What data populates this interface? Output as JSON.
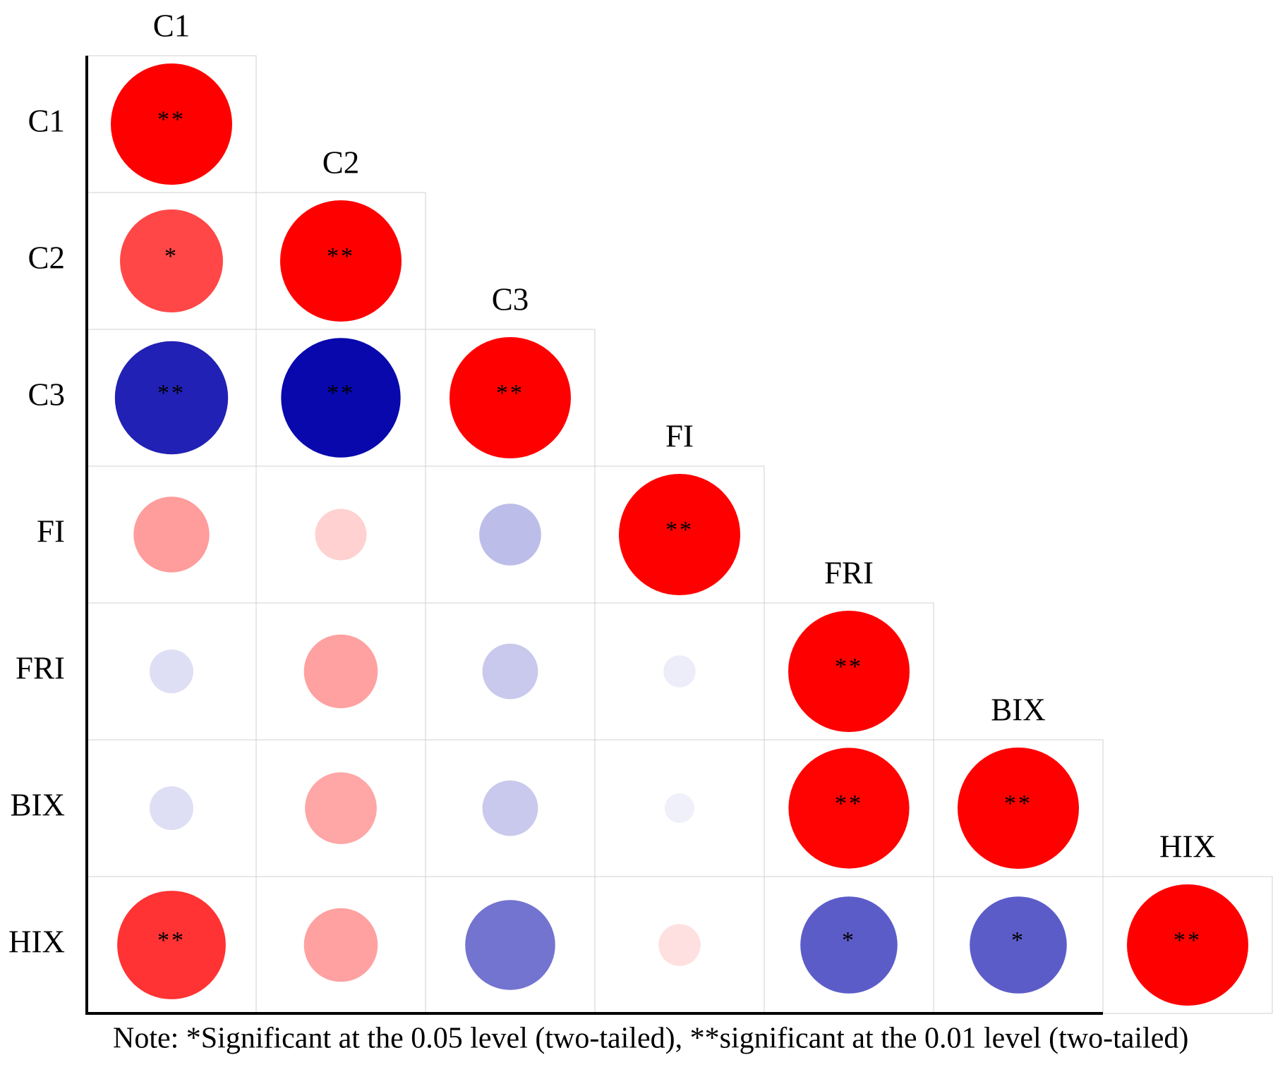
{
  "chart_data": {
    "type": "corrplot",
    "variables": [
      "C1",
      "C2",
      "C3",
      "FI",
      "FRI",
      "BIX",
      "HIX"
    ],
    "matrix": [
      [
        1
      ],
      [
        0.72,
        1
      ],
      [
        -0.87,
        -0.97,
        1
      ],
      [
        0.39,
        0.18,
        -0.26,
        1
      ],
      [
        -0.13,
        0.37,
        -0.21,
        -0.07,
        1
      ],
      [
        -0.13,
        0.35,
        -0.21,
        -0.06,
        0.99,
        1
      ],
      [
        0.8,
        0.37,
        -0.55,
        0.12,
        -0.64,
        -0.64,
        1
      ]
    ],
    "significance": [
      [
        "**"
      ],
      [
        "*",
        "**"
      ],
      [
        "**",
        "**",
        "**"
      ],
      [
        null,
        null,
        null,
        "**"
      ],
      [
        null,
        null,
        null,
        null,
        "**"
      ],
      [
        null,
        null,
        null,
        null,
        "**",
        "**"
      ],
      [
        "**",
        null,
        null,
        null,
        "*",
        "*",
        "**"
      ]
    ],
    "positive_color": "#ff0000",
    "negative_color": "#0000aa",
    "note": "Note: *Significant at the 0.05 level (two-tailed), **significant at the 0.01 level (two-tailed)"
  }
}
